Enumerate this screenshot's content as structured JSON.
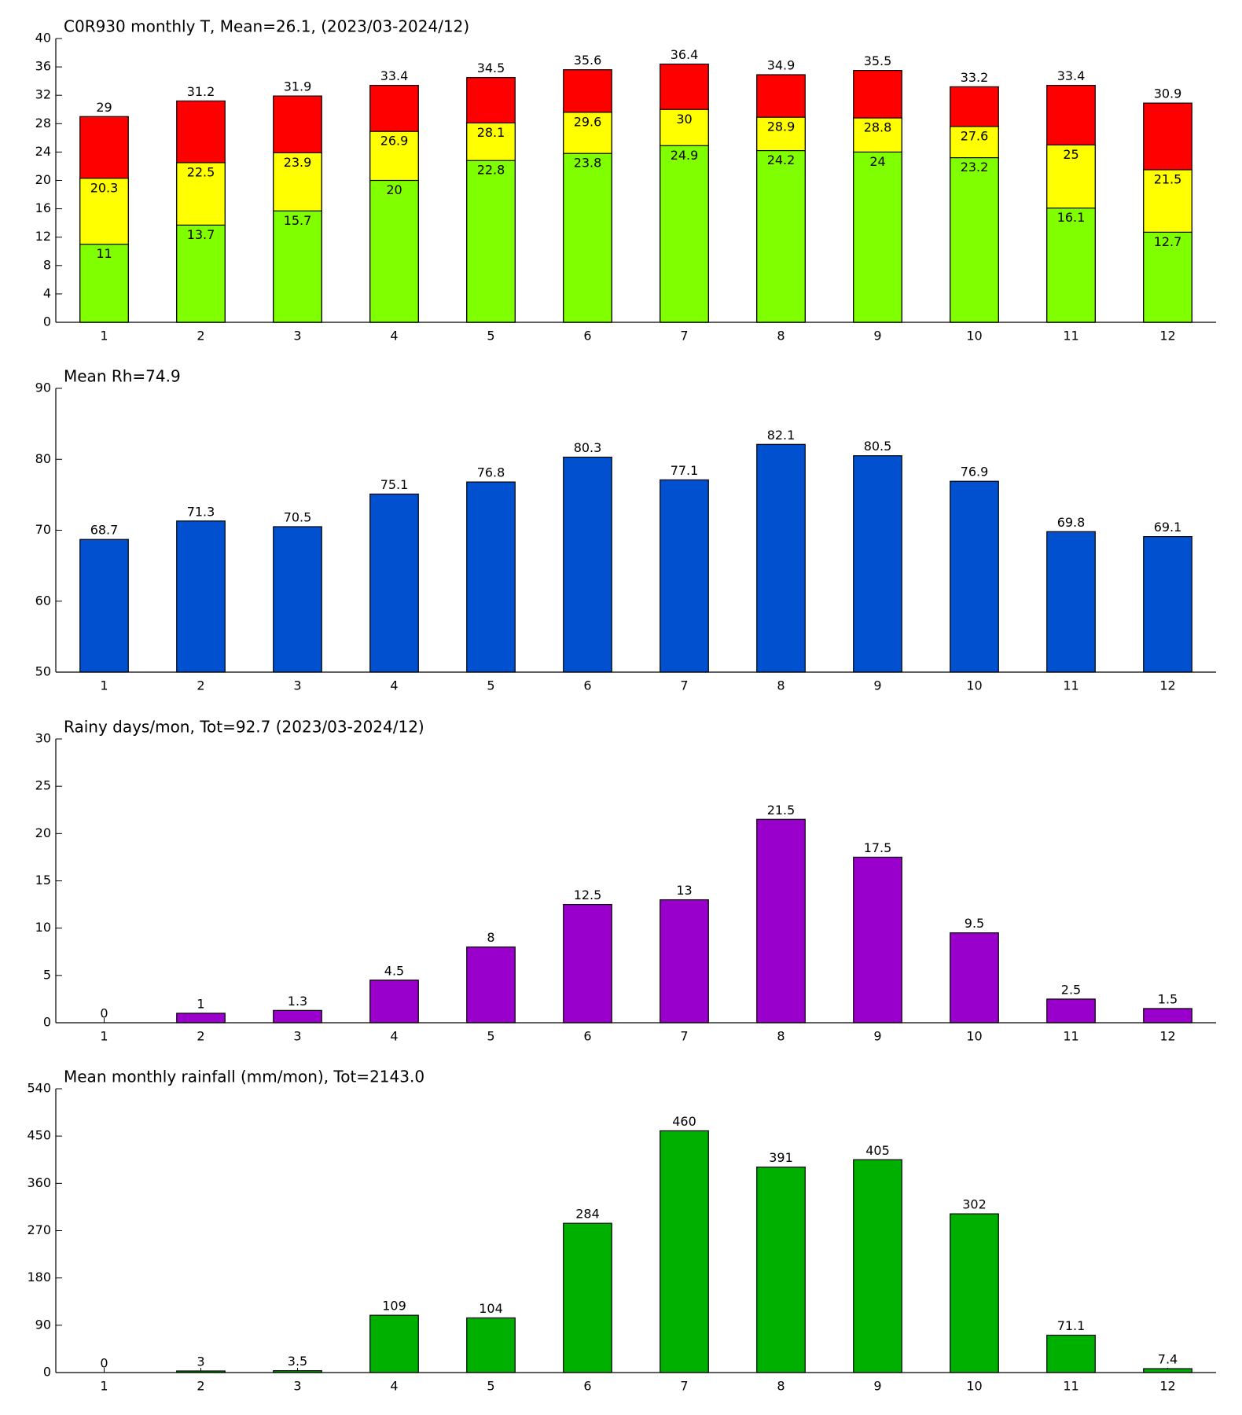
{
  "chart_data": [
    {
      "type": "bar",
      "title": "C0R930 monthly T, Mean=26.1, (2023/03-2024/12)",
      "categories": [
        "1",
        "2",
        "3",
        "4",
        "5",
        "6",
        "7",
        "8",
        "9",
        "10",
        "11",
        "12"
      ],
      "series": [
        {
          "color": "#ff0000",
          "values": [
            29,
            31.2,
            31.9,
            33.4,
            34.5,
            35.6,
            36.4,
            34.9,
            35.5,
            33.2,
            33.4,
            30.9
          ]
        },
        {
          "color": "#ffff00",
          "values": [
            20.3,
            22.5,
            23.9,
            26.9,
            28.1,
            29.6,
            30,
            28.9,
            28.8,
            27.6,
            25,
            21.5
          ]
        },
        {
          "color": "#80ff00",
          "values": [
            11,
            13.7,
            15.7,
            20,
            22.8,
            23.8,
            24.9,
            24.2,
            24,
            23.2,
            16.1,
            12.7
          ]
        }
      ],
      "ylim": [
        0,
        40
      ],
      "yticks": [
        0,
        4,
        8,
        12,
        16,
        20,
        24,
        28,
        32,
        36,
        40
      ]
    },
    {
      "type": "bar",
      "title": "Mean Rh=74.9",
      "categories": [
        "1",
        "2",
        "3",
        "4",
        "5",
        "6",
        "7",
        "8",
        "9",
        "10",
        "11",
        "12"
      ],
      "values": [
        68.7,
        71.3,
        70.5,
        75.1,
        76.8,
        80.3,
        77.1,
        82.1,
        80.5,
        76.9,
        69.8,
        69.1
      ],
      "color": "#0050d0",
      "ylim": [
        50,
        90
      ],
      "yticks": [
        50,
        60,
        70,
        80,
        90
      ]
    },
    {
      "type": "bar",
      "title": "Rainy days/mon, Tot=92.7 (2023/03-2024/12)",
      "categories": [
        "1",
        "2",
        "3",
        "4",
        "5",
        "6",
        "7",
        "8",
        "9",
        "10",
        "11",
        "12"
      ],
      "values": [
        0,
        1,
        1.3,
        4.5,
        8,
        12.5,
        13,
        21.5,
        17.5,
        9.5,
        2.5,
        1.5
      ],
      "color": "#9900cc",
      "ylim": [
        0,
        30
      ],
      "yticks": [
        0,
        5,
        10,
        15,
        20,
        25,
        30
      ]
    },
    {
      "type": "bar",
      "title": "Mean monthly rainfall (mm/mon), Tot=2143.0",
      "categories": [
        "1",
        "2",
        "3",
        "4",
        "5",
        "6",
        "7",
        "8",
        "9",
        "10",
        "11",
        "12"
      ],
      "values": [
        0,
        3,
        3.5,
        109,
        104,
        284,
        460,
        391,
        405,
        302,
        71.1,
        7.4
      ],
      "color": "#00b000",
      "ylim": [
        0,
        540
      ],
      "yticks": [
        0,
        90,
        180,
        270,
        360,
        450,
        540
      ]
    }
  ]
}
